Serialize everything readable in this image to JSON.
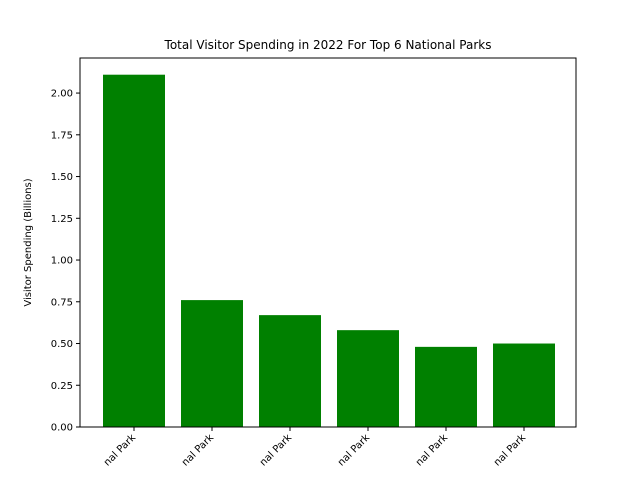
{
  "chart_data": {
    "type": "bar",
    "title": "Total Visitor Spending in 2022 For Top 6 National Parks",
    "xlabel": "",
    "ylabel": "Visitor Spending (Billions)",
    "categories": [
      "nal Park",
      "nal Park",
      "nal Park",
      "nal Park",
      "nal Park",
      "nal Park"
    ],
    "values": [
      2.11,
      0.76,
      0.67,
      0.58,
      0.48,
      0.5
    ],
    "ylim": [
      0,
      2.21
    ],
    "yticks": [
      0.0,
      0.25,
      0.5,
      0.75,
      1.0,
      1.25,
      1.5,
      1.75,
      2.0
    ],
    "ytick_labels": [
      "0.00",
      "0.25",
      "0.50",
      "0.75",
      "1.00",
      "1.25",
      "1.50",
      "1.75",
      "2.00"
    ],
    "bar_color": "#008000",
    "grid": false,
    "legend": "none"
  }
}
